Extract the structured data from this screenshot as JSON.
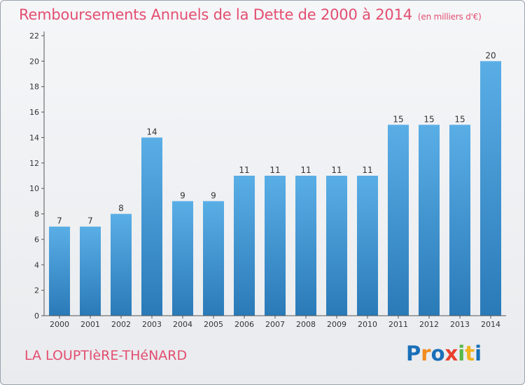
{
  "title": "Remboursements Annuels de la Dette de 2000 à 2014",
  "unit": "(en milliers d'€)",
  "commune": "LA LOUPTIèRE-THéNARD",
  "logo": {
    "text": "Proxiti",
    "letter_colors": [
      "#1a6fb8",
      "#f28c1e",
      "#1a6fb8",
      "#e8402e",
      "#58b847",
      "#f2b21e",
      "#1a6fb8"
    ]
  },
  "colors": {
    "title": "#e34e70",
    "bar_top": "#5aaee6",
    "bar_bottom": "#2a7ab8"
  },
  "chart_data": {
    "type": "bar",
    "categories": [
      "2000",
      "2001",
      "2002",
      "2003",
      "2004",
      "2005",
      "2006",
      "2007",
      "2008",
      "2009",
      "2010",
      "2011",
      "2012",
      "2013",
      "2014"
    ],
    "values": [
      7,
      7,
      8,
      14,
      9,
      9,
      11,
      11,
      11,
      11,
      11,
      15,
      15,
      15,
      20
    ],
    "data_labels": [
      "7",
      "7",
      "8",
      "14",
      "9",
      "9",
      "11",
      "11",
      "11",
      "11",
      "11",
      "15",
      "15",
      "15",
      "20"
    ],
    "title": "Remboursements Annuels de la Dette de 2000 à 2014",
    "xlabel": "",
    "ylabel": "",
    "ylim": [
      0,
      22
    ],
    "yticks": [
      0,
      2,
      4,
      6,
      8,
      10,
      12,
      14,
      16,
      18,
      20,
      22
    ],
    "grid": false,
    "legend": "none"
  }
}
